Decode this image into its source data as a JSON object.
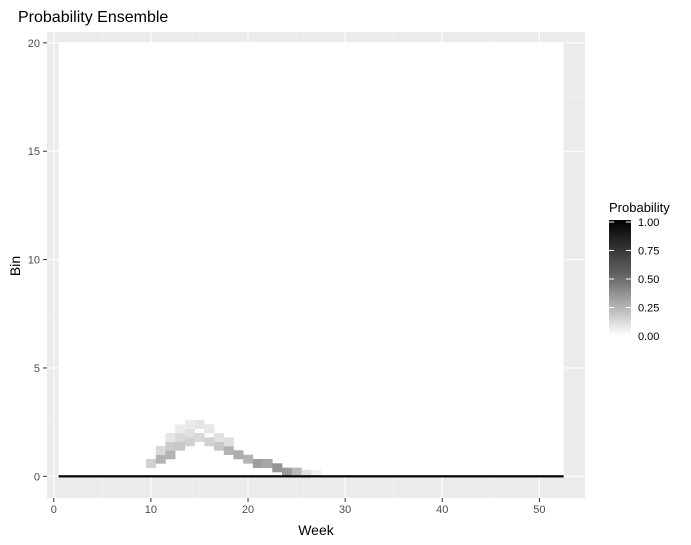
{
  "chart_data": {
    "type": "heatmap",
    "title": "Probability Ensemble",
    "xlabel": "Week",
    "ylabel": "Bin",
    "xlim": [
      -0.7,
      54.7
    ],
    "ylim": [
      -1,
      20.5
    ],
    "x_ticks": [
      0,
      10,
      20,
      30,
      40,
      50
    ],
    "y_ticks": [
      0,
      5,
      10,
      15,
      20
    ],
    "grid": true,
    "legend": {
      "title": "Probability",
      "position": "right",
      "labels": [
        "1.00",
        "0.75",
        "0.50",
        "0.25",
        "0.00"
      ],
      "values": [
        1.0,
        0.75,
        0.5,
        0.25,
        0.0
      ],
      "low_color": "#ffffff",
      "high_color": "#000000"
    },
    "colors": {
      "panel_background": "#ebebeb",
      "grid_major": "#ffffff",
      "grid_minor": "#f3f3f3",
      "tile_high": "#000000",
      "tile_low": "#ffffff"
    },
    "tile_bin_range": [
      0,
      20
    ],
    "tile_week_range": [
      1,
      52
    ],
    "hot_cells": [
      {
        "week": 10,
        "bin": 0.6,
        "value": 0.18
      },
      {
        "week": 11,
        "bin": 0.8,
        "value": 0.3
      },
      {
        "week": 11,
        "bin": 1.2,
        "value": 0.15
      },
      {
        "week": 12,
        "bin": 1.0,
        "value": 0.3
      },
      {
        "week": 12,
        "bin": 1.4,
        "value": 0.2
      },
      {
        "week": 12,
        "bin": 1.8,
        "value": 0.1
      },
      {
        "week": 13,
        "bin": 1.4,
        "value": 0.22
      },
      {
        "week": 13,
        "bin": 1.8,
        "value": 0.15
      },
      {
        "week": 13,
        "bin": 2.2,
        "value": 0.08
      },
      {
        "week": 14,
        "bin": 1.6,
        "value": 0.18
      },
      {
        "week": 14,
        "bin": 2.0,
        "value": 0.12
      },
      {
        "week": 14,
        "bin": 2.4,
        "value": 0.08
      },
      {
        "week": 15,
        "bin": 1.8,
        "value": 0.15
      },
      {
        "week": 15,
        "bin": 2.4,
        "value": 0.1
      },
      {
        "week": 16,
        "bin": 1.6,
        "value": 0.18
      },
      {
        "week": 16,
        "bin": 2.2,
        "value": 0.1
      },
      {
        "week": 17,
        "bin": 1.4,
        "value": 0.22
      },
      {
        "week": 17,
        "bin": 1.8,
        "value": 0.12
      },
      {
        "week": 18,
        "bin": 1.2,
        "value": 0.3
      },
      {
        "week": 18,
        "bin": 1.6,
        "value": 0.12
      },
      {
        "week": 19,
        "bin": 1.0,
        "value": 0.32
      },
      {
        "week": 20,
        "bin": 0.8,
        "value": 0.3
      },
      {
        "week": 21,
        "bin": 0.6,
        "value": 0.38
      },
      {
        "week": 22,
        "bin": 0.6,
        "value": 0.35
      },
      {
        "week": 23,
        "bin": 0.4,
        "value": 0.42
      },
      {
        "week": 24,
        "bin": 0.2,
        "value": 0.4
      },
      {
        "week": 25,
        "bin": 0.2,
        "value": 0.28
      },
      {
        "week": 26,
        "bin": 0.1,
        "value": 0.12
      },
      {
        "week": 27,
        "bin": 0.1,
        "value": 0.06
      }
    ],
    "baseline": {
      "bin": 0,
      "week_start": 1,
      "week_end": 52,
      "value": 1.0
    }
  }
}
